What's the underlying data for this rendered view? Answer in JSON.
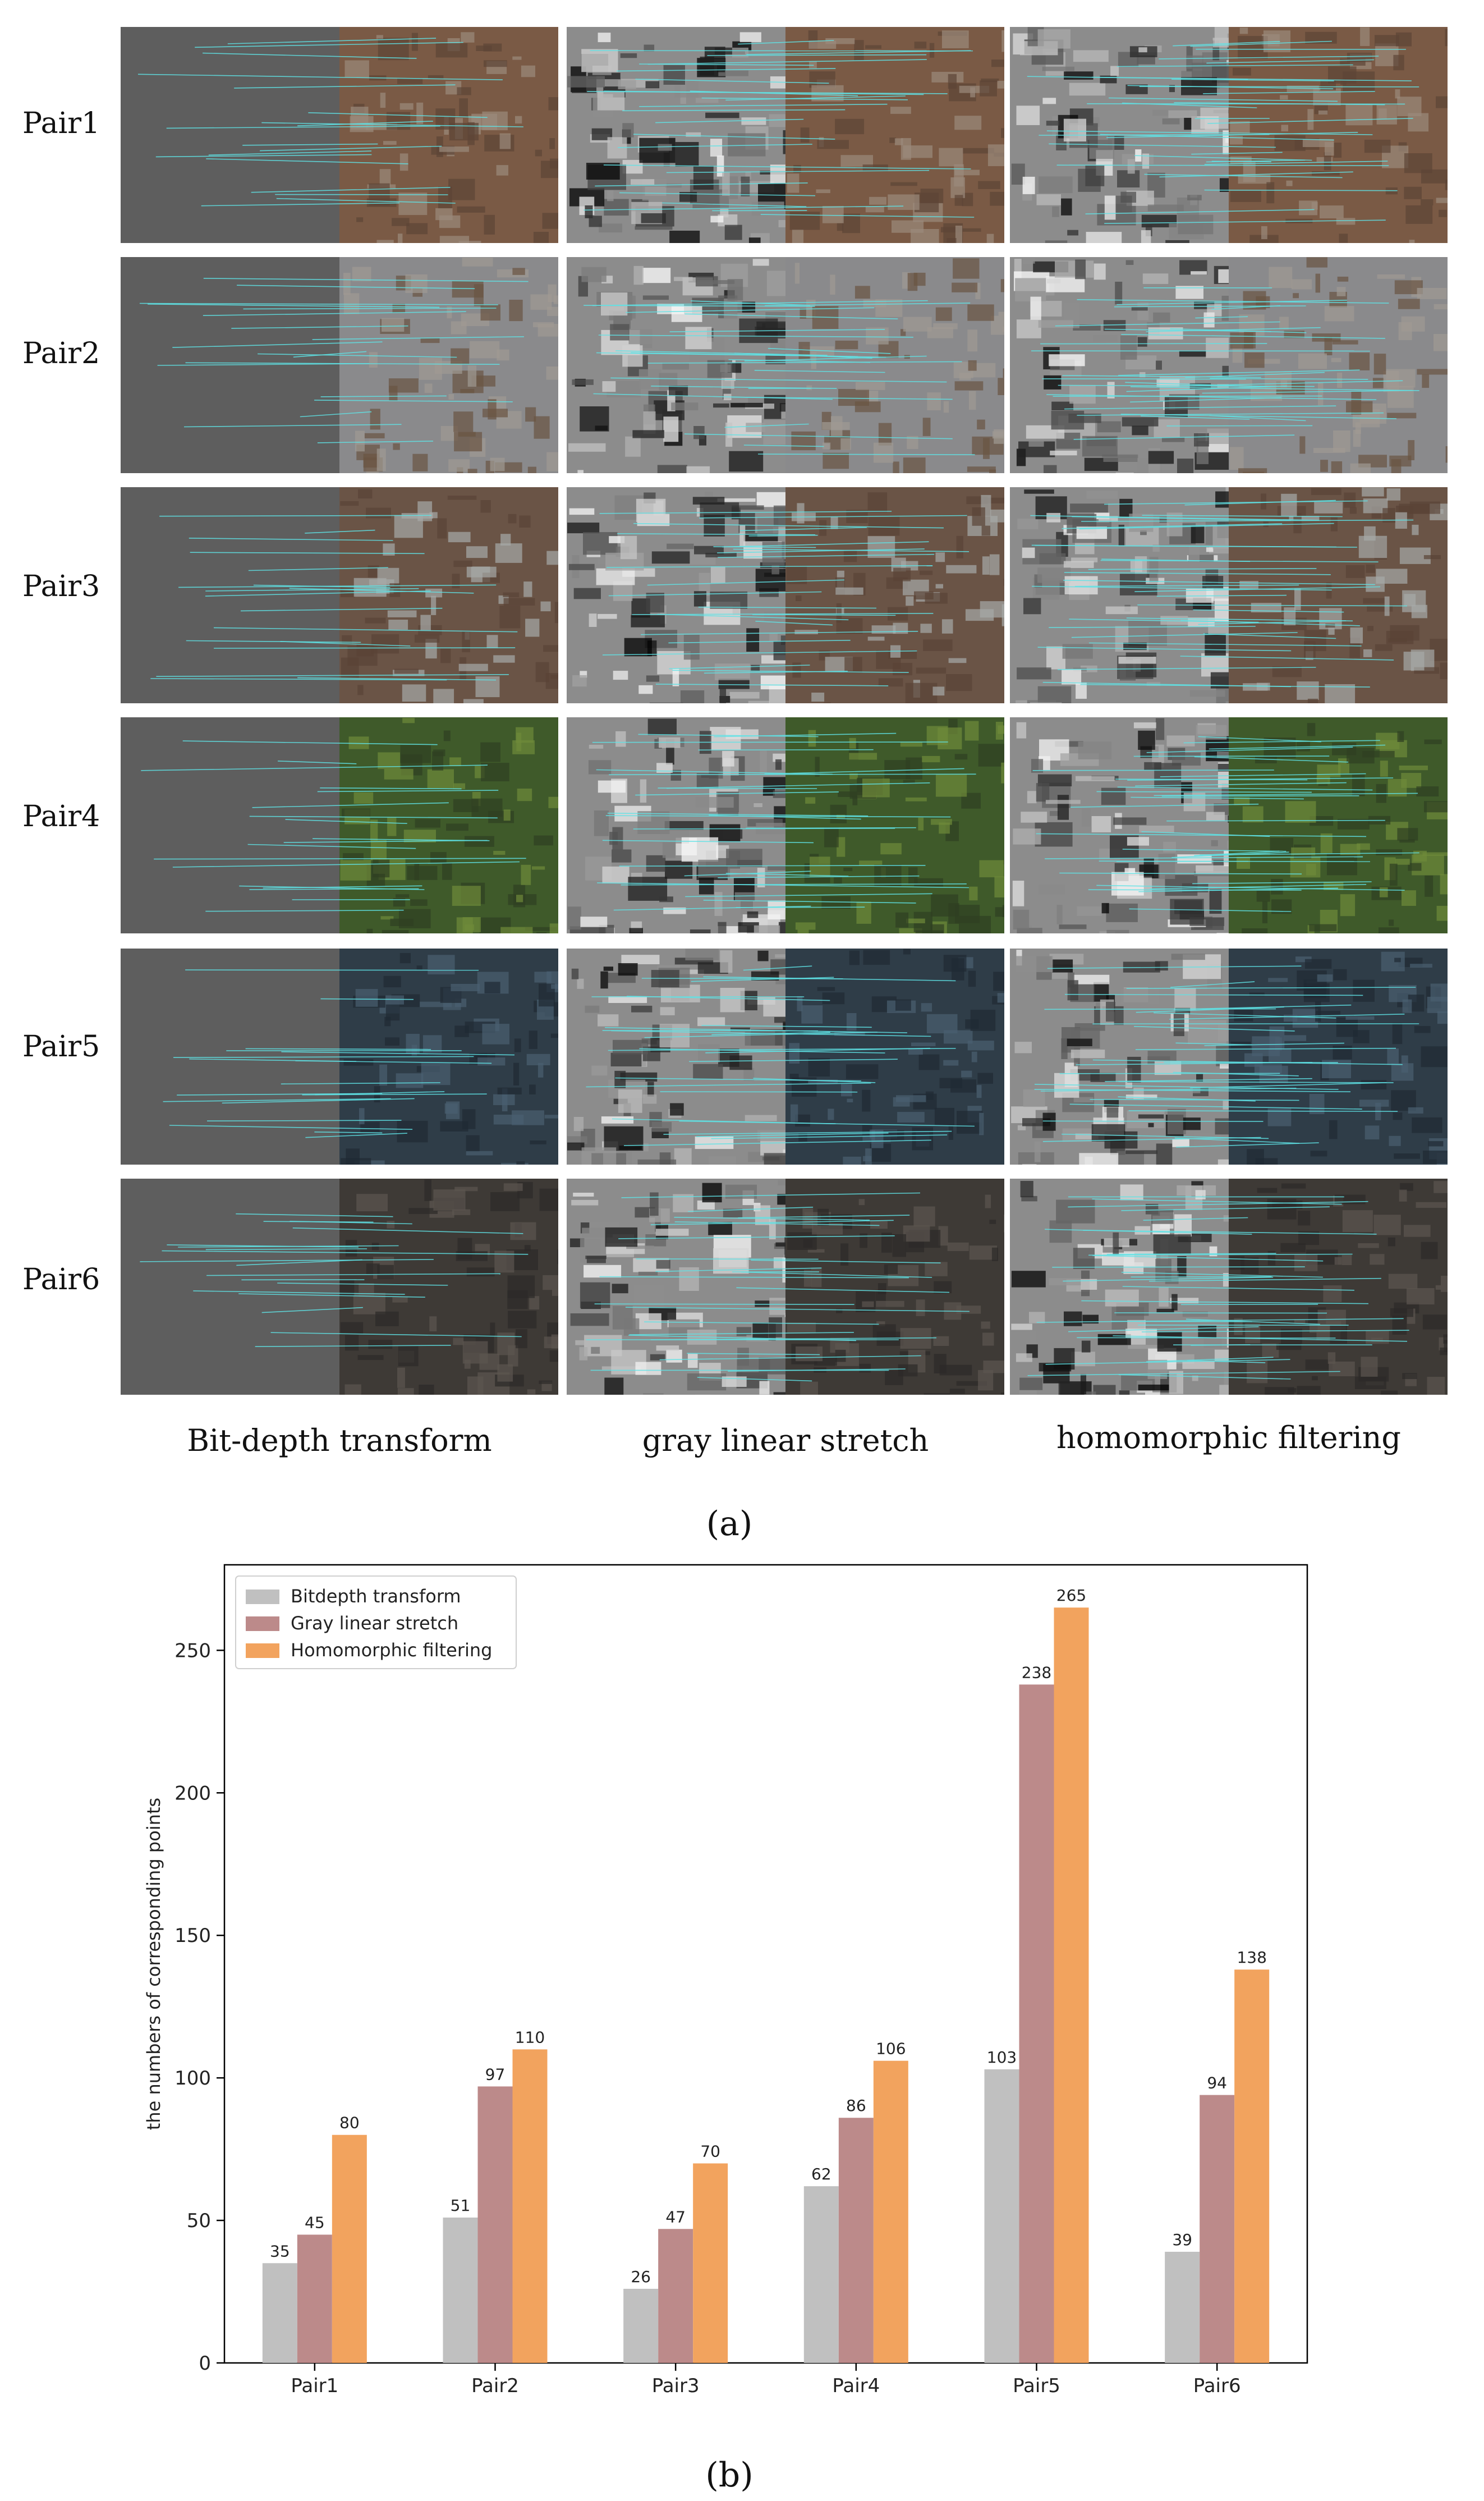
{
  "figure_a": {
    "row_labels": [
      "Pair1",
      "Pair2",
      "Pair3",
      "Pair4",
      "Pair5",
      "Pair6"
    ],
    "column_labels": [
      "Bit-depth transform",
      "gray linear stretch",
      "homomorphic filtering"
    ],
    "caption": "(a)"
  },
  "figure_b": {
    "caption": "(b)"
  },
  "chart_data": {
    "type": "bar",
    "categories": [
      "Pair1",
      "Pair2",
      "Pair3",
      "Pair4",
      "Pair5",
      "Pair6"
    ],
    "series": [
      {
        "name": "Bitdepth transform",
        "values": [
          35,
          51,
          26,
          62,
          103,
          39
        ],
        "color": "#c0c0c0"
      },
      {
        "name": "Gray linear stretch",
        "values": [
          45,
          97,
          47,
          86,
          238,
          94
        ],
        "color": "#bc8a8a"
      },
      {
        "name": "Homomorphic filtering",
        "values": [
          80,
          110,
          70,
          106,
          265,
          138
        ],
        "color": "#f2a35e"
      }
    ],
    "xlabel": "",
    "ylabel": "the numbers of corresponding points",
    "ylim": [
      0,
      280
    ],
    "yticks": [
      0,
      50,
      100,
      150,
      200,
      250
    ],
    "legend_position": "top-left",
    "grid": false,
    "data_labels": true
  }
}
